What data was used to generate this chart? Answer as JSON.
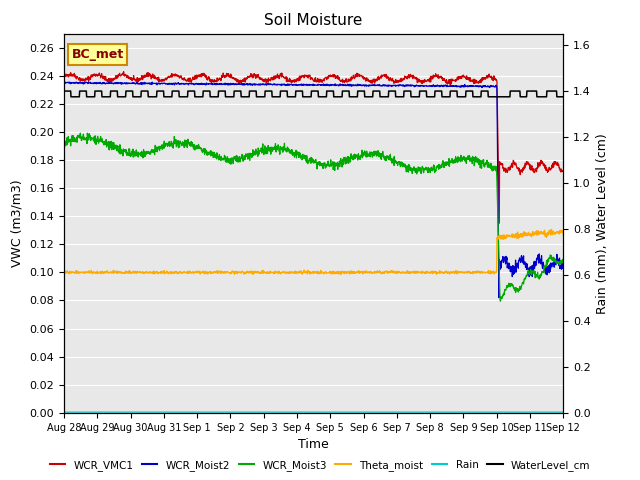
{
  "title": "Soil Moisture",
  "xlabel": "Time",
  "ylabel_left": "VWC (m3/m3)",
  "ylabel_right": "Rain (mm), Water Level (cm)",
  "ylim_left": [
    0.0,
    0.27
  ],
  "ylim_right": [
    0.0,
    1.65
  ],
  "yticks_left": [
    0.0,
    0.02,
    0.04,
    0.06,
    0.08,
    0.1,
    0.12,
    0.14,
    0.16,
    0.18,
    0.2,
    0.22,
    0.24,
    0.26
  ],
  "yticks_right": [
    0.0,
    0.2,
    0.4,
    0.6,
    0.8,
    1.0,
    1.2,
    1.4,
    1.6
  ],
  "plot_bg_color": "#e8e8e8",
  "fig_bg_color": "#ffffff",
  "annotation_label": "BC_met",
  "annotation_box_color": "#ffff99",
  "annotation_border_color": "#cc8800",
  "legend_entries": [
    "WCR_VMC1",
    "WCR_Moist2",
    "WCR_Moist3",
    "Theta_moist",
    "Rain",
    "WaterLevel_cm"
  ],
  "legend_colors": [
    "#cc0000",
    "#0000cc",
    "#00aa00",
    "#ffaa00",
    "#00cccc",
    "#000000"
  ],
  "n_points": 1500,
  "sep10_day": 13.0,
  "total_days": 15
}
